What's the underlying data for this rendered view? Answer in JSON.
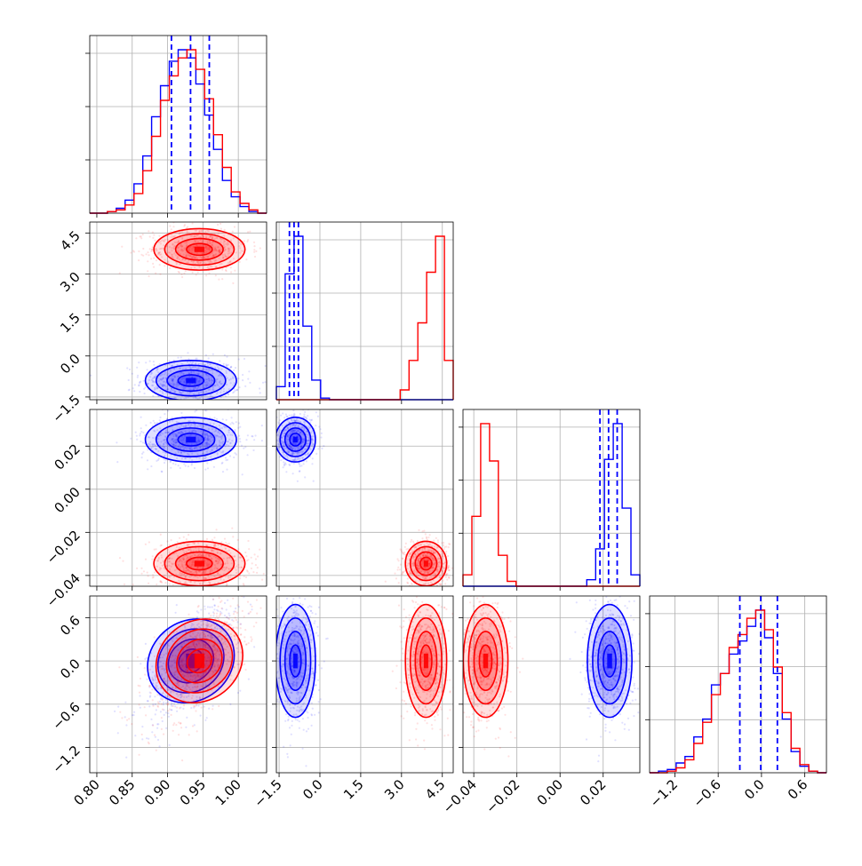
{
  "chart_data": {
    "type": "corner",
    "title": "",
    "colors": {
      "series_a": "#0000ff",
      "series_b": "#ff0000",
      "grid": "#b0b0b0"
    },
    "grid": true,
    "series": [
      {
        "color": "blue"
      },
      {
        "color": "red"
      }
    ],
    "params": [
      {
        "range": [
          0.79,
          1.04
        ],
        "ticks": [
          "0.80",
          "0.85",
          "0.90",
          "0.95",
          "1.00"
        ],
        "tick_values": [
          0.8,
          0.85,
          0.9,
          0.95,
          1.0
        ]
      },
      {
        "range": [
          -1.6,
          4.9
        ],
        "ticks": [
          "−1.5",
          "0.0",
          "1.5",
          "3.0",
          "4.5"
        ],
        "tick_values": [
          -1.5,
          0.0,
          1.5,
          3.0,
          4.5
        ]
      },
      {
        "range": [
          -0.045,
          0.037
        ],
        "ticks": [
          "−0.04",
          "−0.02",
          "0.00",
          "0.02"
        ],
        "tick_values": [
          -0.04,
          -0.02,
          0.0,
          0.02
        ]
      },
      {
        "range": [
          -1.55,
          0.9
        ],
        "ticks": [
          "−1.2",
          "−0.6",
          "0.0",
          "0.6"
        ],
        "tick_values": [
          -1.2,
          -0.6,
          0.0,
          0.6
        ]
      }
    ],
    "quantile_lines": [
      [
        0.9055,
        0.9325,
        0.959
      ],
      [
        -1.12,
        -0.95,
        -0.79
      ],
      [
        0.0185,
        0.0225,
        0.0265
      ],
      [
        -0.3,
        -0.01,
        0.22
      ]
    ],
    "clusters": {
      "blue": {
        "mean": [
          0.933,
          -0.9,
          0.023,
          0.0
        ],
        "sd": [
          0.028,
          0.32,
          0.0045,
          0.34
        ]
      },
      "red": {
        "mean": [
          0.945,
          3.9,
          -0.0345,
          0.0
        ],
        "sd": [
          0.028,
          0.33,
          0.0045,
          0.34
        ]
      }
    },
    "correlation_p1_p4": 0.6,
    "histograms": [
      {
        "edges": [
          0.79,
          0.8025,
          0.815,
          0.8275,
          0.84,
          0.8525,
          0.865,
          0.8775,
          0.89,
          0.9025,
          0.915,
          0.9275,
          0.94,
          0.9525,
          0.965,
          0.9775,
          0.99,
          1.0025,
          1.015,
          1.0275,
          1.04
        ],
        "blue": [
          0,
          0,
          1,
          3,
          8,
          18,
          35,
          59,
          78,
          93,
          100,
          95,
          79,
          60,
          39,
          20,
          10,
          4,
          1,
          0
        ],
        "red": [
          0,
          0,
          1,
          2,
          5,
          12,
          26,
          47,
          69,
          84,
          95,
          100,
          88,
          70,
          48,
          28,
          13,
          6,
          2,
          0
        ]
      },
      {
        "edges": [
          -1.6,
          -1.275,
          -0.95,
          -0.625,
          -0.3,
          0.025,
          0.35,
          0.675,
          1.0,
          1.325,
          1.65,
          1.975,
          2.3,
          2.625,
          2.95,
          3.275,
          3.6,
          3.925,
          4.25,
          4.575,
          4.9
        ],
        "blue": [
          8,
          77,
          100,
          45,
          12,
          1,
          0,
          0,
          0,
          0,
          0,
          0,
          0,
          0,
          0,
          0,
          0,
          0,
          0,
          0
        ],
        "red": [
          0,
          0,
          0,
          0,
          0,
          0,
          0,
          0,
          0,
          0,
          0,
          0,
          0,
          0,
          6,
          24,
          47,
          78,
          100,
          24
        ]
      },
      {
        "edges": [
          -0.045,
          -0.0409,
          -0.0368,
          -0.0327,
          -0.0286,
          -0.0245,
          -0.0204,
          -0.0163,
          -0.0122,
          -0.0081,
          -0.004,
          0.0001,
          0.0042,
          0.0083,
          0.0124,
          0.0165,
          0.0206,
          0.0247,
          0.0288,
          0.0329,
          0.037
        ],
        "blue": [
          0,
          0,
          0,
          0,
          0,
          0,
          0,
          0,
          0,
          0,
          0,
          0,
          0,
          0,
          4,
          23,
          78,
          100,
          48,
          7
        ],
        "red": [
          7,
          43,
          100,
          77,
          19,
          3,
          0,
          0,
          0,
          0,
          0,
          0,
          0,
          0,
          0,
          0,
          0,
          0,
          0,
          0
        ]
      },
      {
        "edges": [
          -1.55,
          -1.4275,
          -1.305,
          -1.1825,
          -1.06,
          -0.9375,
          -0.815,
          -0.6925,
          -0.57,
          -0.4475,
          -0.325,
          -0.2025,
          -0.08,
          0.0425,
          0.165,
          0.2875,
          0.41,
          0.5325,
          0.655,
          0.7775,
          0.9
        ],
        "blue": [
          0,
          1,
          2,
          6,
          10,
          22,
          33,
          54,
          61,
          73,
          81,
          90,
          100,
          83,
          61,
          33,
          13,
          4,
          1,
          0
        ],
        "red": [
          0,
          0,
          1,
          3,
          8,
          18,
          31,
          48,
          61,
          77,
          85,
          95,
          100,
          88,
          65,
          37,
          15,
          5,
          1,
          0
        ]
      }
    ]
  }
}
